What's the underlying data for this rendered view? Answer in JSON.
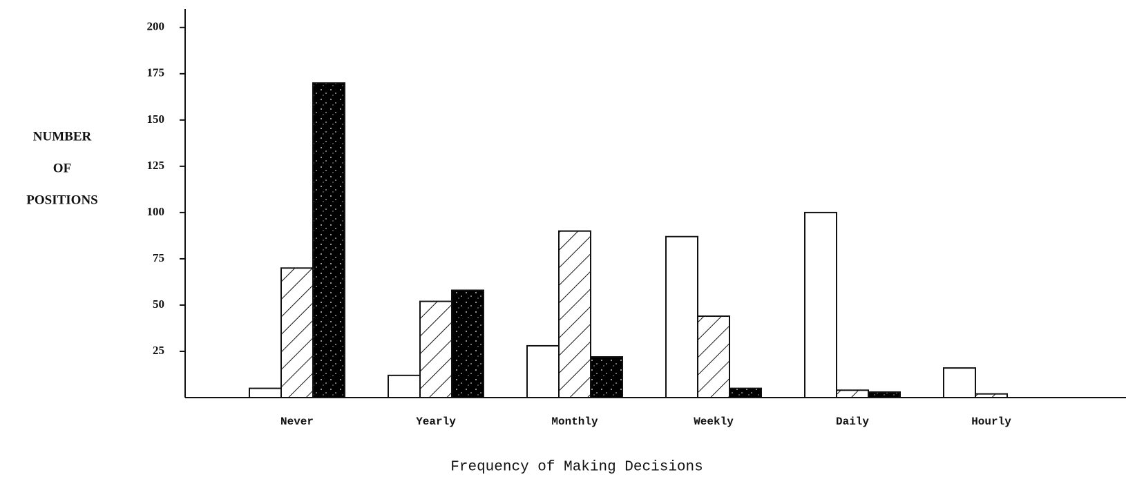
{
  "chart_data": {
    "type": "bar",
    "x_label": "Frequency of Making Decisions",
    "y_label": [
      "NUMBER",
      "OF",
      "POSITIONS"
    ],
    "categories": [
      "Never",
      "Yearly",
      "Monthly",
      "Weekly",
      "Daily",
      "Hourly"
    ],
    "series": [
      {
        "color": "#ffffff",
        "pattern": "none",
        "values": [
          5,
          12,
          28,
          87,
          100,
          16
        ]
      },
      {
        "color": "#ffffff",
        "pattern": "hatch",
        "values": [
          70,
          52,
          90,
          44,
          4,
          2
        ]
      },
      {
        "color": "#000000",
        "pattern": "speckle",
        "values": [
          170,
          58,
          22,
          5,
          3,
          0
        ]
      }
    ],
    "ylim": [
      0,
      210
    ],
    "yticks": [
      25,
      50,
      75,
      100,
      125,
      150,
      175,
      200
    ],
    "grid": false
  }
}
